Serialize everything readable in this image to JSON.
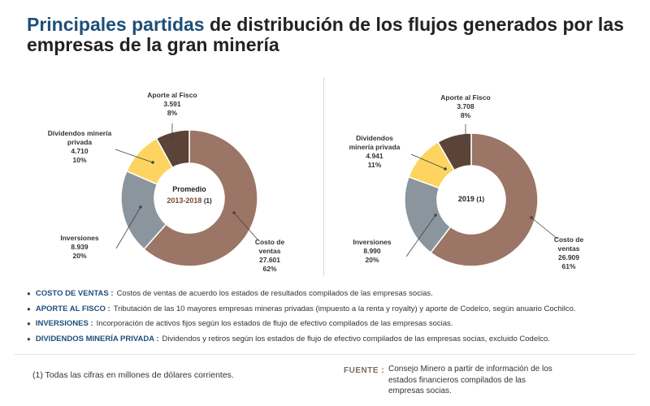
{
  "title": {
    "accent": "Principales partidas",
    "rest": " de distribución de los flujos generados por las empresas de la gran minería"
  },
  "colors": {
    "costo": "#9b7565",
    "aporte": "#5c4338",
    "dividendos": "#fcd45f",
    "inversiones": "#8b959e",
    "title_accent": "#1f4e79",
    "center_highlight": "#7a4a2e"
  },
  "chart_data": [
    {
      "type": "pie",
      "center_label": [
        "Promedio",
        "2013-2018",
        "(1)"
      ],
      "slices": [
        {
          "key": "costo",
          "label": [
            "Costo de",
            "ventas"
          ],
          "value": 27601,
          "value_text": "27.601",
          "percent": 62,
          "percent_text": "62%"
        },
        {
          "key": "inversiones",
          "label": [
            "Inversiones"
          ],
          "value": 8939,
          "value_text": "8.939",
          "percent": 20,
          "percent_text": "20%"
        },
        {
          "key": "dividendos",
          "label": [
            "Dividendos minería",
            "privada"
          ],
          "value": 4710,
          "value_text": "4.710",
          "percent": 10,
          "percent_text": "10%"
        },
        {
          "key": "aporte",
          "label": [
            "Aporte al Fisco"
          ],
          "value": 3591,
          "value_text": "3.591",
          "percent": 8,
          "percent_text": "8%"
        }
      ]
    },
    {
      "type": "pie",
      "center_label": [
        "2019",
        "(1)"
      ],
      "slices": [
        {
          "key": "costo",
          "label": [
            "Costo de",
            "ventas"
          ],
          "value": 26909,
          "value_text": "26.909",
          "percent": 61,
          "percent_text": "61%"
        },
        {
          "key": "inversiones",
          "label": [
            "Inversiones"
          ],
          "value": 8990,
          "value_text": "8.990",
          "percent": 20,
          "percent_text": "20%"
        },
        {
          "key": "dividendos",
          "label": [
            "Dividendos",
            "minería privada"
          ],
          "value": 4941,
          "value_text": "4.941",
          "percent": 11,
          "percent_text": "11%"
        },
        {
          "key": "aporte",
          "label": [
            "Aporte al Fisco"
          ],
          "value": 3708,
          "value_text": "3.708",
          "percent": 8,
          "percent_text": "8%"
        }
      ]
    }
  ],
  "definitions": [
    {
      "term": "COSTO DE VENTAS :",
      "text": "Costos de ventas de acuerdo los estados de resultados compilados de las empresas socias."
    },
    {
      "term": "APORTE AL FISCO :",
      "text": "Tributación de las 10 mayores empresas mineras privadas (impuesto a la renta y royalty) y aporte de Codelco, según anuario Cochilco."
    },
    {
      "term": "INVERSIONES :",
      "text": "Incorporación de activos fijos según los estados de flujo de efectivo compilados de las empresas socias."
    },
    {
      "term": "DIVIDENDOS MINERÍA PRIVADA :",
      "text": "Dividendos y retiros según los estados de flujo de efectivo compilados de las empresas socias, excluido Codelco."
    }
  ],
  "footnote": "(1) Todas las cifras en millones de dólares corrientes.",
  "source": {
    "label": "FUENTE :",
    "text": "Consejo Minero a partir de información de los estados financieros compilados de las empresas socias."
  }
}
